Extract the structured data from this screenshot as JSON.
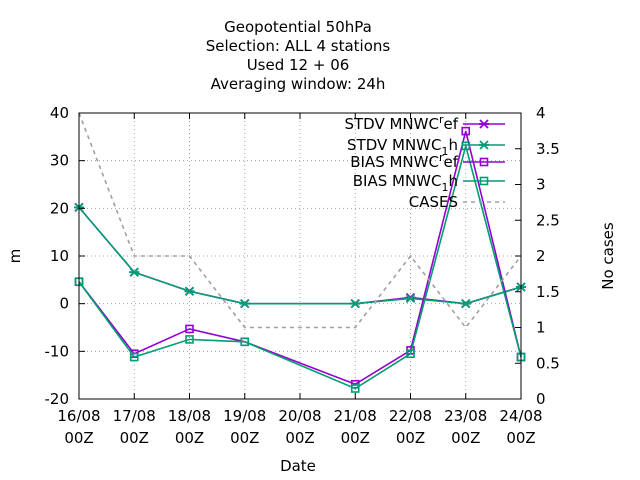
{
  "chart_data": {
    "type": "line",
    "title_lines": [
      "Geopotential 50hPa",
      "Selection: ALL      4 stations",
      "Used  12 + 06",
      "Averaging window: 24h"
    ],
    "xlabel": "Date",
    "ylabel": "m",
    "y2label": "No cases",
    "x_categories": [
      "16/08",
      "17/08",
      "18/08",
      "19/08",
      "20/08",
      "21/08",
      "22/08",
      "23/08",
      "24/08"
    ],
    "x_sublabel": "00Z",
    "ylim": [
      -20,
      40
    ],
    "yticks": [
      -20,
      -10,
      0,
      10,
      20,
      30,
      40
    ],
    "y2lim": [
      0,
      4
    ],
    "y2ticks": [
      "0",
      "0.5",
      "1",
      "1.5",
      "2",
      "2.5",
      "3",
      "3.5",
      "4"
    ],
    "grid": true,
    "legend_position": "top-right",
    "colors": {
      "ref": "#9400d3",
      "one_h": "#009e73",
      "cases": "#a0a0a0"
    },
    "series": [
      {
        "name": "STDV MNWC_ref",
        "marker": "x",
        "axis": "y",
        "color": "#9400d3",
        "values": [
          20.2,
          6.6,
          2.6,
          0.0,
          null,
          0.0,
          1.3,
          0.0,
          3.5
        ]
      },
      {
        "name": "STDV MNWC_1h",
        "marker": "x",
        "axis": "y",
        "color": "#009e73",
        "values": [
          20.2,
          6.6,
          2.6,
          0.0,
          null,
          0.0,
          1.1,
          0.0,
          3.5
        ]
      },
      {
        "name": "BIAS MNWC_ref",
        "marker": "square",
        "axis": "y",
        "color": "#9400d3",
        "values": [
          4.6,
          -10.5,
          -5.3,
          -8.0,
          null,
          -16.9,
          -9.8,
          36.2,
          -11.2
        ]
      },
      {
        "name": "BIAS MNWC_1h",
        "marker": "square",
        "axis": "y",
        "color": "#009e73",
        "values": [
          4.6,
          -11.2,
          -7.5,
          -8.0,
          null,
          -17.8,
          -10.5,
          33.1,
          -11.2
        ]
      },
      {
        "name": "CASES",
        "marker": "none",
        "axis": "y2",
        "color": "#a0a0a0",
        "dashed": true,
        "values": [
          4,
          2,
          2,
          1,
          null,
          1,
          2,
          1,
          2
        ]
      }
    ],
    "legend": [
      {
        "main": "STDV MNWC",
        "sub": "r",
        "tail": "ef"
      },
      {
        "main": "STDV MNWC",
        "sub": "1",
        "tail": "h"
      },
      {
        "main": "BIAS MNWC",
        "sub": "r",
        "tail": "ef"
      },
      {
        "main": "BIAS MNWC",
        "sub": "1",
        "tail": "h"
      },
      {
        "main": "CASES",
        "sub": "",
        "tail": ""
      }
    ]
  }
}
